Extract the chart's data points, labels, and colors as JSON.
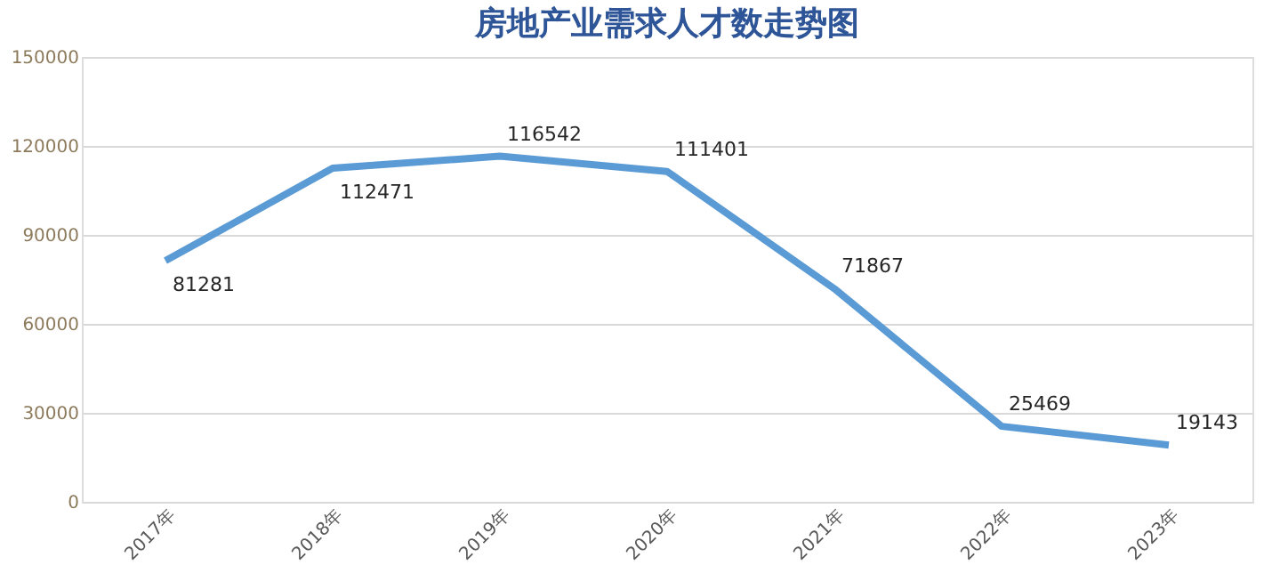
{
  "chart_data": {
    "type": "line",
    "title": "房地产业需求人才数走势图",
    "categories": [
      "2017年",
      "2018年",
      "2019年",
      "2020年",
      "2021年",
      "2022年",
      "2023年"
    ],
    "values": [
      81281,
      112471,
      116542,
      111401,
      71867,
      25469,
      19143
    ],
    "color": "#5b9bd5",
    "ylim": [
      0,
      150000
    ],
    "yticks": [
      0,
      30000,
      60000,
      90000,
      120000,
      150000
    ],
    "grid": "y",
    "data_labels": true,
    "marker": "none",
    "line_style": "solid"
  }
}
